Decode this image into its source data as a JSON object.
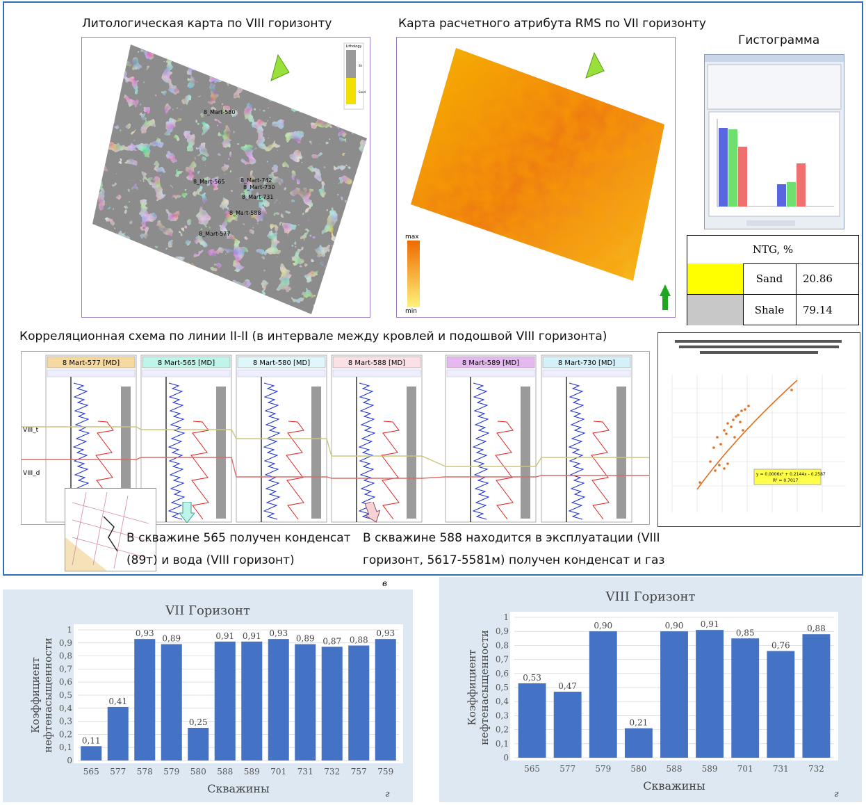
{
  "top": {
    "litho_title": "Литологическая карта по VIII горизонту",
    "rms_title": "Карта расчетного атрибута RMS по VII горизонту",
    "histogram_title": "Гистограмма",
    "correlation_title": "Корреляционная схема по линии II-II (в интервале между кровлей и подошвой VIII горизонта)",
    "litho_wells": [
      "8_Mart-580",
      "8_Mart-565",
      "8_Mart-742",
      "8_Mart-730",
      "8_Mart-731",
      "8_Mart-588",
      "8_Mart-577"
    ],
    "litho_legend": {
      "title": "Lithology",
      "items": [
        "Sh",
        "Sand"
      ]
    },
    "rms_legend": {
      "max": "max",
      "min": "min"
    },
    "ntg": {
      "header": "NTG, %",
      "rows": [
        {
          "name": "Sand",
          "value": "20.86",
          "color": "#ffff00"
        },
        {
          "name": "Shale",
          "value": "79.14",
          "color": "#c8c8c8"
        }
      ]
    },
    "well_panels": [
      "8 Mart-577 [MD]",
      "8 Mart-565 [MD]",
      "8 Mart-580 [MD]",
      "8 Mart-588 [MD]",
      "8 Mart-589 [MD]",
      "8 Mart-730 [MD]"
    ],
    "horizon_labels": {
      "top": "VIII_t",
      "bottom": "VIII_d"
    },
    "scatter_equation": "y = 0.0006x² + 0.2144x - 0.2587",
    "scatter_r2": "R² = 0.7017",
    "note_left_line1": "В скважине 565 получен конденсат",
    "note_left_line2": "(89т) и вода (VIII горизонт)",
    "note_right_line1": "В скважине 588 находится в эксплуатации (VIII",
    "note_right_line2": "горизонт, 5617-5581м) получен конденсат и газ",
    "panel_letter": "в"
  },
  "chart_data": [
    {
      "type": "bar",
      "title": "VII Горизонт",
      "xlabel": "Скважины",
      "ylabel": "Коэффициент нефтенасыщенности",
      "categories": [
        "565",
        "577",
        "578",
        "579",
        "580",
        "588",
        "589",
        "701",
        "731",
        "732",
        "757",
        "759"
      ],
      "values": [
        0.11,
        0.41,
        0.93,
        0.89,
        0.25,
        0.91,
        0.91,
        0.93,
        0.89,
        0.87,
        0.88,
        0.93
      ],
      "value_labels": [
        "0,11",
        "0,41",
        "0,93",
        "0,89",
        "0,25",
        "0,91",
        "0,91",
        "0,93",
        "0,89",
        "0,87",
        "0,88",
        "0,93"
      ],
      "yticks": [
        "0",
        "0,1",
        "0,2",
        "0,3",
        "0,4",
        "0,5",
        "0,6",
        "0,7",
        "0,8",
        "0,9",
        "1"
      ],
      "ylim": [
        0,
        1
      ],
      "color": "#4472c4",
      "letter": "г"
    },
    {
      "type": "bar",
      "title": "VIII Горизонт",
      "xlabel": "Скважины",
      "ylabel": "Коэффициент нефтенасыщенности",
      "categories": [
        "565",
        "577",
        "579",
        "580",
        "588",
        "589",
        "701",
        "731",
        "732"
      ],
      "values": [
        0.53,
        0.47,
        0.9,
        0.21,
        0.9,
        0.91,
        0.85,
        0.76,
        0.88
      ],
      "value_labels": [
        "0,53",
        "0,47",
        "0,90",
        "0,21",
        "0,90",
        "0,91",
        "0,85",
        "0,76",
        "0,88"
      ],
      "yticks": [
        "0",
        "0,1",
        "0,2",
        "0,3",
        "0,4",
        "0,5",
        "0,6",
        "0,7",
        "0,8",
        "0,9",
        "1"
      ],
      "ylim": [
        0,
        1
      ],
      "color": "#4472c4",
      "letter": "г"
    }
  ]
}
